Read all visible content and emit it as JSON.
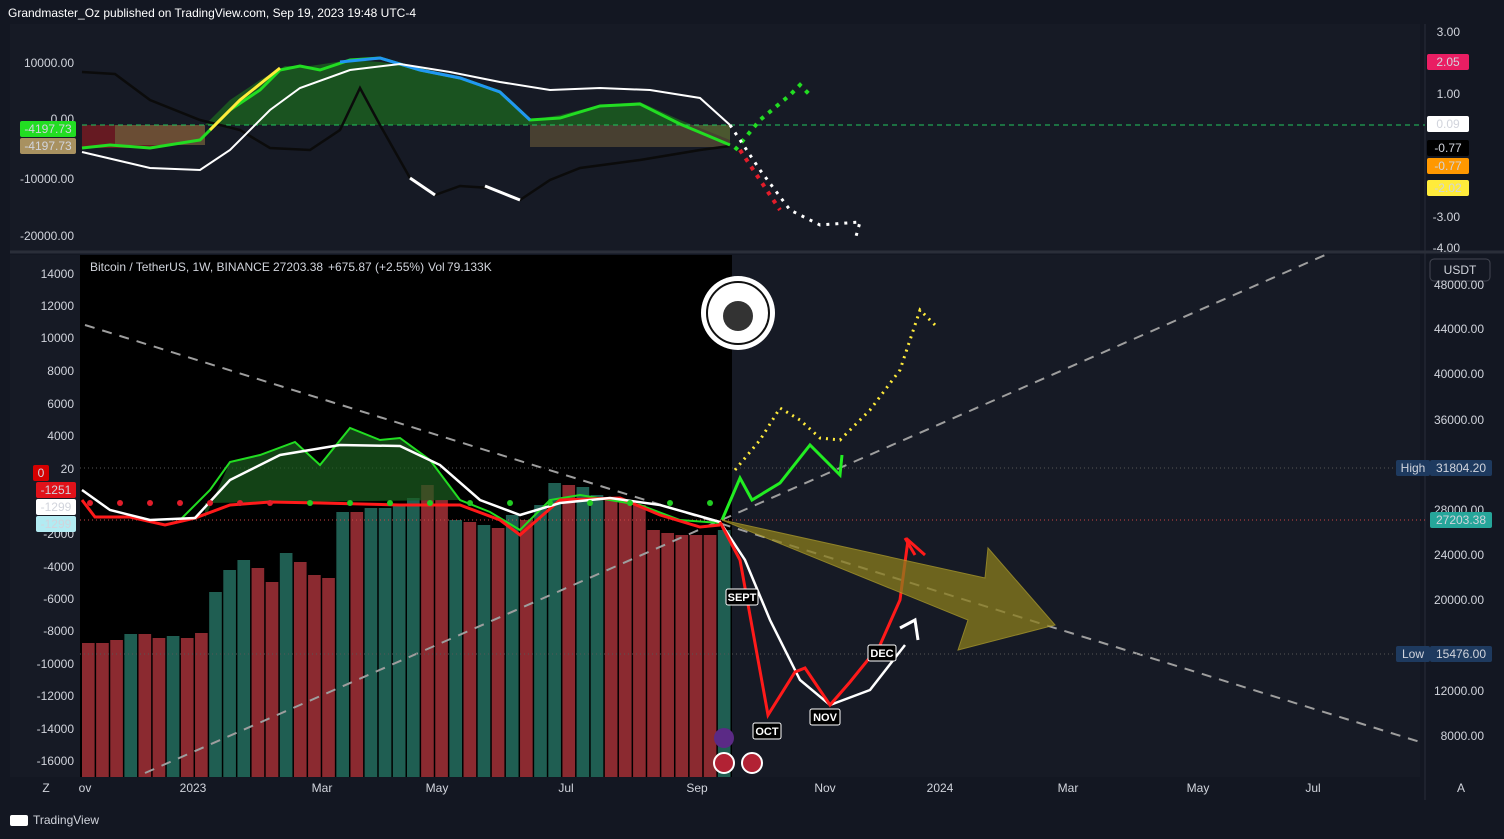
{
  "header": {
    "publisher": "Grandmaster_Oz published on TradingView.com, Sep 19, 2023 19:48 UTC-4"
  },
  "top_pane": {
    "left_axis": [
      "10000.00",
      "0.00",
      "-10000.00",
      "-20000.00"
    ],
    "left_badges": [
      "-4197.73",
      "-4197.73"
    ],
    "right_axis": [
      "3.00",
      "1.00",
      "-3.00",
      "-4.00"
    ],
    "right_badges": [
      "2.05",
      "0.09",
      "-0.77",
      "-0.77",
      "-2.02"
    ]
  },
  "main_pane": {
    "legend": {
      "symbol": "Bitcoin / TetherUS, 1W, BINANCE",
      "price": "27203.38",
      "change": "+675.87 (+2.55%)",
      "volume_label": "Vol",
      "volume": "79.133K"
    },
    "left_axis": [
      "14000",
      "12000",
      "10000",
      "8000",
      "6000",
      "4000",
      "20",
      "-2000",
      "-4000",
      "-6000",
      "-8000",
      "-10000",
      "-12000",
      "-14000",
      "-16000"
    ],
    "left_badges": [
      "0",
      "-1251",
      "-1299",
      "-1299"
    ],
    "currency": "USDT",
    "right_axis": [
      "48000.00",
      "44000.00",
      "40000.00",
      "36000.00",
      "28000.00",
      "24000.00",
      "20000.00",
      "12000.00",
      "8000.00"
    ],
    "high": {
      "label": "High",
      "value": "31804.20"
    },
    "current_price": "27203.38",
    "low": {
      "label": "Low",
      "value": "15476.00"
    },
    "annotations": [
      "SEPT",
      "OCT",
      "NOV",
      "DEC"
    ]
  },
  "time_axis": [
    "ov",
    "2023",
    "Mar",
    "May",
    "Jul",
    "Sep",
    "Nov",
    "2024",
    "Mar",
    "May",
    "Jul"
  ],
  "footer": {
    "brand": "TradingView",
    "buttons": [
      "Z",
      "A"
    ]
  }
}
